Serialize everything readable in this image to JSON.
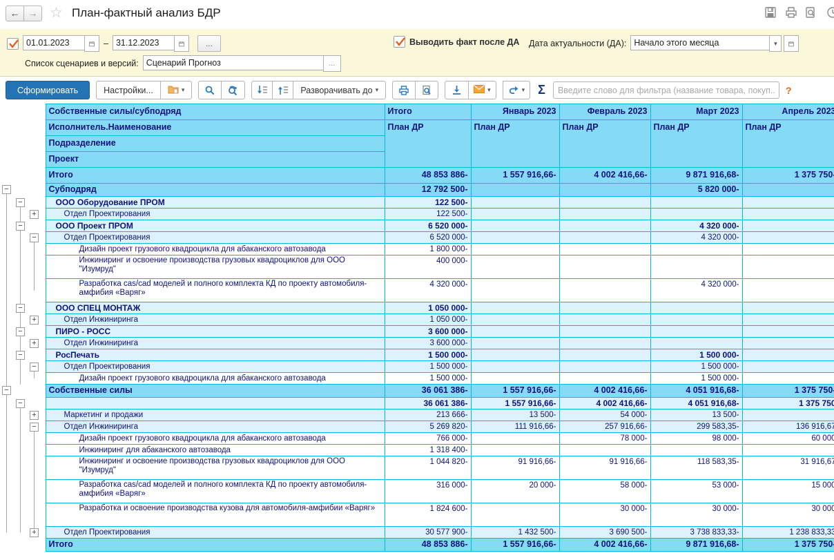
{
  "titlebar": {
    "title": "План-фактный анализ БДР"
  },
  "filter_panel": {
    "period_checkbox_checked": true,
    "date_from": "01.01.2023",
    "date_range_dash": "–",
    "date_to": "31.12.2023",
    "more_button": "...",
    "fact_checkbox_label": "Выводить факт после ДА",
    "fact_checkbox_checked": true,
    "actual_date_label": "Дата актуальности (ДА):",
    "actual_date_value": "Начало этого месяца",
    "scenario_label": "Список сценариев и версий:",
    "scenario_value": "Сценарий Прогноз",
    "scenario_more": "..."
  },
  "toolbar": {
    "generate_label": "Сформировать",
    "settings_label": "Настройки...",
    "expand_to_label": "Разворачивать до",
    "sum_symbol": "Σ",
    "filter_placeholder": "Введите слово для фильтра (название товара, покуп...",
    "help_label": "?"
  },
  "colors": {
    "accent_blue": "#2473b5",
    "header_bg": "#85daf5",
    "subrow_bg": "#dcf2fc",
    "grid": "#00b8d9",
    "text_navy": "#0e1380",
    "panel_yellow": "#fbf7da",
    "check_orange": "#e3611c"
  },
  "table": {
    "dim_headers": [
      "Собственные силы/субподряд",
      "Исполнитель.Наименование",
      "Подразделение",
      "Проект"
    ],
    "columns": {
      "total": "Итого",
      "measure": "План ДР",
      "months": [
        "Январь 2023",
        "Февраль 2023",
        "Март 2023",
        "Апрель 2023"
      ]
    },
    "grand_total_label": "Итого",
    "grand_total_values": [
      "48 853 886-",
      "1 557 916,66-",
      "4 002 416,66-",
      "9 871 916,68-",
      "1 375 750-"
    ],
    "rows": [
      {
        "label": "Субподряд",
        "level": 1,
        "bold": true,
        "bg": "s",
        "values": [
          "12 792 500-",
          "",
          "",
          "5 820 000-",
          ""
        ],
        "tree": {
          "box": [
            1,
            "-"
          ],
          "lines": [],
          "up": [],
          "down": [
            1
          ]
        }
      },
      {
        "label": "ООО Оборудование ПРОМ",
        "level": 2,
        "bold": true,
        "bg": "m",
        "values": [
          "122 500-",
          "",
          "",
          "",
          ""
        ],
        "tree": {
          "box": [
            2,
            "-"
          ],
          "lines": [
            1
          ],
          "up": [],
          "down": [
            2
          ]
        }
      },
      {
        "label": "Отдел Проектирования",
        "level": 3,
        "bold": false,
        "bg": "m",
        "values": [
          "122 500-",
          "",
          "",
          "",
          ""
        ],
        "tree": {
          "box": [
            3,
            "+"
          ],
          "lines": [
            1,
            2
          ],
          "up": [],
          "down": []
        }
      },
      {
        "label": "ООО Проект ПРОМ",
        "level": 2,
        "bold": true,
        "bg": "m",
        "values": [
          "6 520 000-",
          "",
          "",
          "4 320 000-",
          ""
        ],
        "tree": {
          "box": [
            2,
            "-"
          ],
          "lines": [
            1,
            2
          ],
          "up": [],
          "down": []
        }
      },
      {
        "label": "Отдел Проектирования",
        "level": 3,
        "bold": false,
        "bg": "m",
        "values": [
          "6 520 000-",
          "",
          "",
          "4 320 000-",
          ""
        ],
        "tree": {
          "box": [
            3,
            "-"
          ],
          "lines": [
            1,
            2
          ],
          "up": [],
          "down": [
            3
          ]
        }
      },
      {
        "label": "Дизайн проект грузового квадроцикла для абаканского автозавода",
        "level": 4,
        "bold": false,
        "bg": "w",
        "values": [
          "1 800 000-",
          "",
          "",
          "",
          ""
        ],
        "tree": {
          "box": null,
          "lines": [
            1,
            2,
            3
          ],
          "up": [],
          "down": []
        }
      },
      {
        "label": "Инжиниринг и освоение производства грузовых квадроциклов для ООО \"Изумруд\"",
        "level": 4,
        "bold": false,
        "bg": "w",
        "wrap": true,
        "values": [
          "400 000-",
          "",
          "",
          "",
          ""
        ],
        "tree": {
          "box": null,
          "lines": [
            1,
            2,
            3
          ],
          "up": [],
          "down": []
        }
      },
      {
        "label": "Разработка cas/cad моделей и полного комплекта КД по проекту автомобиля-амфибия «Варяг»",
        "level": 4,
        "bold": false,
        "bg": "w",
        "wrap": true,
        "values": [
          "4 320 000-",
          "",
          "",
          "4 320 000-",
          ""
        ],
        "tree": {
          "box": null,
          "lines": [
            1,
            2
          ],
          "up": [
            3
          ],
          "down": []
        }
      },
      {
        "label": "ООО СПЕЦ МОНТАЖ",
        "level": 2,
        "bold": true,
        "bg": "m",
        "values": [
          "1 050 000-",
          "",
          "",
          "",
          ""
        ],
        "tree": {
          "box": [
            2,
            "-"
          ],
          "lines": [
            1,
            2
          ],
          "up": [],
          "down": []
        }
      },
      {
        "label": "Отдел Инжиниринга",
        "level": 3,
        "bold": false,
        "bg": "m",
        "values": [
          "1 050 000-",
          "",
          "",
          "",
          ""
        ],
        "tree": {
          "box": [
            3,
            "+"
          ],
          "lines": [
            1,
            2
          ],
          "up": [],
          "down": []
        }
      },
      {
        "label": "ПИРО - РОСС",
        "level": 2,
        "bold": true,
        "bg": "m",
        "values": [
          "3 600 000-",
          "",
          "",
          "",
          ""
        ],
        "tree": {
          "box": [
            2,
            "-"
          ],
          "lines": [
            1,
            2
          ],
          "up": [],
          "down": []
        }
      },
      {
        "label": "Отдел Инжиниринга",
        "level": 3,
        "bold": false,
        "bg": "m",
        "values": [
          "3 600 000-",
          "",
          "",
          "",
          ""
        ],
        "tree": {
          "box": [
            3,
            "+"
          ],
          "lines": [
            1,
            2
          ],
          "up": [],
          "down": []
        }
      },
      {
        "label": "РосПечать",
        "level": 2,
        "bold": true,
        "bg": "m",
        "values": [
          "1 500 000-",
          "",
          "",
          "1 500 000-",
          ""
        ],
        "tree": {
          "box": [
            2,
            "-"
          ],
          "lines": [
            1,
            2
          ],
          "up": [],
          "down": []
        }
      },
      {
        "label": "Отдел Проектирования",
        "level": 3,
        "bold": false,
        "bg": "m",
        "values": [
          "1 500 000-",
          "",
          "",
          "1 500 000-",
          ""
        ],
        "tree": {
          "box": [
            3,
            "-"
          ],
          "lines": [
            1,
            2
          ],
          "up": [],
          "down": [
            3
          ]
        }
      },
      {
        "label": "Дизайн проект грузового квадроцикла для абаканского автозавода",
        "level": 4,
        "bold": false,
        "bg": "w",
        "values": [
          "1 500 000-",
          "",
          "",
          "1 500 000-",
          ""
        ],
        "tree": {
          "box": null,
          "lines": [
            1,
            2
          ],
          "up": [
            3
          ],
          "down": []
        }
      },
      {
        "label": "Собственные силы",
        "level": 1,
        "bold": true,
        "bg": "s",
        "values": [
          "36 061 386-",
          "1 557 916,66-",
          "4 002 416,66-",
          "4 051 916,68-",
          "1 375 750-"
        ],
        "tree": {
          "box": [
            1,
            "-"
          ],
          "lines": [],
          "up": [
            1
          ],
          "down": [
            1
          ]
        }
      },
      {
        "label": "",
        "level": 2,
        "bold": true,
        "bg": "m",
        "values": [
          "36 061 386-",
          "1 557 916,66-",
          "4 002 416,66-",
          "4 051 916,68-",
          "1 375 750"
        ],
        "tree": {
          "box": [
            2,
            "-"
          ],
          "lines": [
            1
          ],
          "up": [],
          "down": [
            2
          ]
        }
      },
      {
        "label": "Маркетинг и продажи",
        "level": 3,
        "bold": false,
        "bg": "m",
        "values": [
          "213 666-",
          "13 500-",
          "54 000-",
          "13 500-",
          ""
        ],
        "tree": {
          "box": [
            3,
            "+"
          ],
          "lines": [
            1,
            2
          ],
          "up": [],
          "down": []
        }
      },
      {
        "label": "Отдел Инжиниринга",
        "level": 3,
        "bold": false,
        "bg": "m",
        "values": [
          "5 269 820-",
          "111 916,66-",
          "257 916,66-",
          "299 583,35-",
          "136 916,67"
        ],
        "tree": {
          "box": [
            3,
            "-"
          ],
          "lines": [
            1,
            2
          ],
          "up": [],
          "down": [
            3
          ]
        }
      },
      {
        "label": "Дизайн проект грузового квадроцикла для абаканского автозавода",
        "level": 4,
        "bold": false,
        "bg": "w",
        "values": [
          "766 000-",
          "",
          "78 000-",
          "98 000-",
          "60 000"
        ],
        "tree": {
          "box": null,
          "lines": [
            1,
            2,
            3
          ],
          "up": [],
          "down": []
        }
      },
      {
        "label": "Инжиниринг для абаканского автозавода",
        "level": 4,
        "bold": false,
        "bg": "w",
        "values": [
          "1 318 400-",
          "",
          "",
          "",
          ""
        ],
        "tree": {
          "box": null,
          "lines": [
            1,
            2,
            3
          ],
          "up": [],
          "down": []
        }
      },
      {
        "label": "Инжиниринг и освоение производства грузовых квадроциклов для ООО \"Изумруд\"",
        "level": 4,
        "bold": false,
        "bg": "w",
        "wrap": true,
        "values": [
          "1 044 820-",
          "91 916,66-",
          "91 916,66-",
          "118 583,35-",
          "31 916,67"
        ],
        "tree": {
          "box": null,
          "lines": [
            1,
            2,
            3
          ],
          "up": [],
          "down": []
        }
      },
      {
        "label": "Разработка cas/cad моделей и полного комплекта КД по проекту автомобиля-амфибия «Варяг»",
        "level": 4,
        "bold": false,
        "bg": "w",
        "wrap": true,
        "values": [
          "316 000-",
          "20 000-",
          "58 000-",
          "53 000-",
          "15 000"
        ],
        "tree": {
          "box": null,
          "lines": [
            1,
            2,
            3
          ],
          "up": [],
          "down": []
        }
      },
      {
        "label": "Разработка и освоение производства кузова для автомобиля-амфибии «Варяг»",
        "level": 4,
        "bold": false,
        "bg": "w",
        "wrap": true,
        "values": [
          "1 824 600-",
          "",
          "30 000-",
          "30 000-",
          "30 000"
        ],
        "tree": {
          "box": null,
          "lines": [
            1,
            2,
            3
          ],
          "up": [],
          "down": []
        }
      },
      {
        "label": "Отдел Проектирования",
        "level": 3,
        "bold": false,
        "bg": "m",
        "values": [
          "30 577 900-",
          "1 432 500-",
          "3 690 500-",
          "3 738 833,33-",
          "1 238 833,33"
        ],
        "tree": {
          "box": [
            3,
            "+"
          ],
          "lines": [],
          "up": [
            1,
            2,
            3
          ],
          "down": []
        }
      },
      {
        "label": "Итого",
        "level": 1,
        "bold": true,
        "bg": "s",
        "values": [
          "48 853 886-",
          "1 557 916,66-",
          "4 002 416,66-",
          "9 871 916,68-",
          "1 375 750-"
        ],
        "tree": {
          "box": null,
          "lines": [],
          "up": [],
          "down": []
        }
      }
    ]
  }
}
